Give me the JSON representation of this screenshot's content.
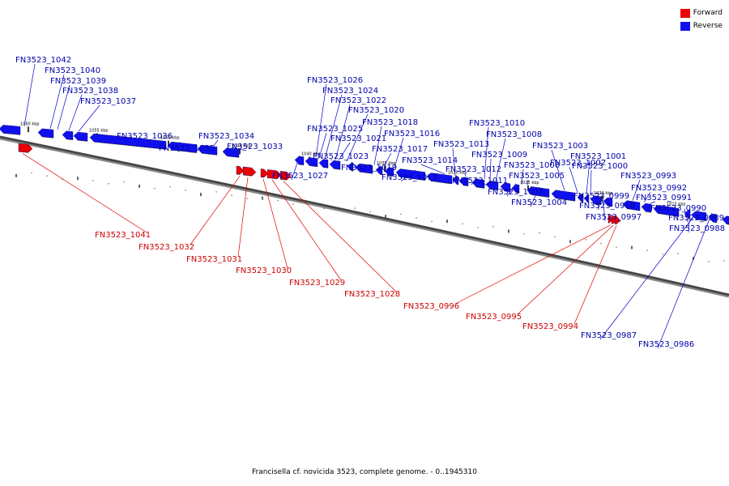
{
  "legend": [
    {
      "label": "Forward",
      "color": "#ee0000"
    },
    {
      "label": "Reverse",
      "color": "#1010ee"
    }
  ],
  "caption": "Francisella cf. novicida 3523, complete genome. - 0..1945310",
  "scale_labels": [
    "1060 kbp",
    "1055 kbp",
    "1050 kbp",
    "1045 kbp",
    "1040 kbp",
    "1035 kbp",
    "1030 kbp",
    "1025 kbp",
    "1020 kbp",
    "1015 kbp"
  ],
  "reverse_genes": [
    "FN3523_1042",
    "FN3523_1040",
    "FN3523_1039",
    "FN3523_1038",
    "FN3523_1037",
    "FN3523_1036",
    "FN3523_1035",
    "FN3523_1034",
    "FN3523_1033",
    "FN3523_1027",
    "FN3523_1026",
    "FN3523_1025",
    "FN3523_1024",
    "FN3523_1023",
    "FN3523_1022",
    "FN3523_1021",
    "FN3523_1020",
    "FN3523_1019",
    "FN3523_1018",
    "FN3523_1017",
    "FN3523_1016",
    "FN3523_1015",
    "FN3523_1014",
    "FN3523_1013",
    "FN3523_1012",
    "FN3523_1011",
    "FN3523_1010",
    "FN3523_1009",
    "FN3523_1008",
    "FN3523_1007",
    "FN3523_1006",
    "FN3523_1005",
    "FN3523_1004",
    "FN3523_1003",
    "FN3523_1002",
    "FN3523_1001",
    "FN3523_1000",
    "FN3523_0999",
    "FN3523_0998",
    "FN3523_0997",
    "FN3523_0993",
    "FN3523_0992",
    "FN3523_0991",
    "FN3523_0990",
    "FN3523_0989",
    "FN3523_0988",
    "FN3523_0987",
    "FN3523_0986"
  ],
  "forward_genes": [
    "FN3523_1041",
    "FN3523_1032",
    "FN3523_1031",
    "FN3523_1030",
    "FN3523_1029",
    "FN3523_1028",
    "FN3523_0996",
    "FN3523_0995",
    "FN3523_0994"
  ]
}
